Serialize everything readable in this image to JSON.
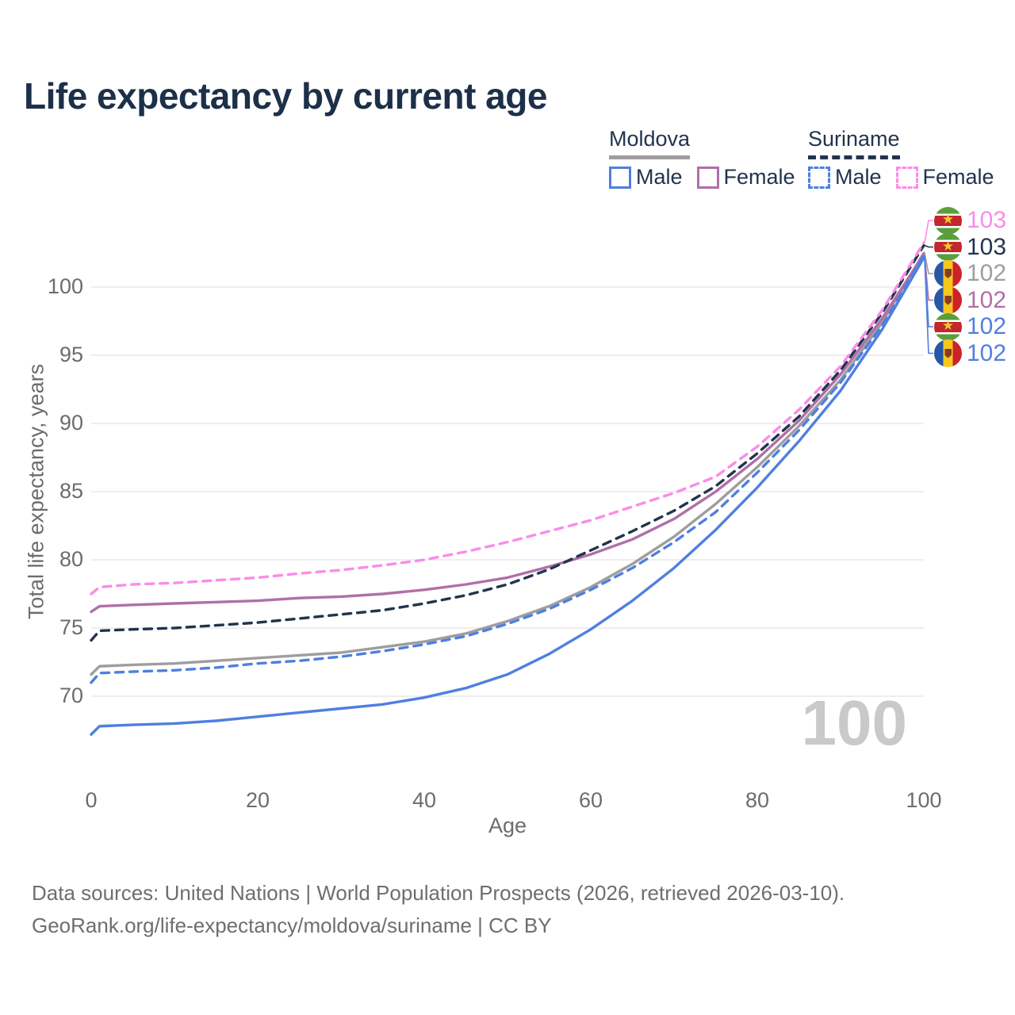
{
  "title": "Life expectancy by current age",
  "legend": {
    "groups": [
      {
        "label": "Moldova",
        "line_style": "solid",
        "line_color": "#9e9e9e",
        "items": [
          {
            "label": "Male",
            "color": "#4f7fe0"
          },
          {
            "label": "Female",
            "color": "#b06fa8"
          }
        ]
      },
      {
        "label": "Suriname",
        "line_style": "dashed",
        "line_color": "#22344d",
        "items": [
          {
            "label": "Male",
            "color": "#4f7fe0"
          },
          {
            "label": "Female",
            "color": "#fa8ce8"
          }
        ]
      }
    ]
  },
  "watermark": "100",
  "right_labels": [
    {
      "flag": "suriname",
      "series": "Suriname Female",
      "value": "103",
      "color": "#fa8ce8"
    },
    {
      "flag": "suriname",
      "series": "Suriname Total",
      "value": "103",
      "color": "#22344d"
    },
    {
      "flag": "moldova",
      "series": "Moldova Total",
      "value": "102",
      "color": "#9e9e9e"
    },
    {
      "flag": "moldova",
      "series": "Moldova Female",
      "value": "102",
      "color": "#b06fa8"
    },
    {
      "flag": "suriname",
      "series": "Suriname Male",
      "value": "102",
      "color": "#4f7fe0"
    },
    {
      "flag": "moldova",
      "series": "Moldova Male",
      "value": "102",
      "color": "#4f7fe0"
    }
  ],
  "chart_data": {
    "type": "line",
    "title": "Life expectancy by current age",
    "xlabel": "Age",
    "ylabel": "Total life expectancy, years",
    "xlim": [
      0,
      100
    ],
    "ylim": [
      66,
      104
    ],
    "x_ticks": [
      0,
      20,
      40,
      60,
      80,
      100
    ],
    "y_ticks": [
      70,
      75,
      80,
      85,
      90,
      95,
      100
    ],
    "grid": true,
    "legend_position": "top-right",
    "x": [
      0,
      1,
      5,
      10,
      15,
      20,
      25,
      30,
      35,
      40,
      45,
      50,
      55,
      60,
      65,
      70,
      75,
      80,
      85,
      90,
      95,
      100
    ],
    "series": [
      {
        "name": "Moldova Total",
        "country": "Moldova",
        "sex": "Both",
        "line_style": "solid",
        "color": "#9e9e9e",
        "values": [
          71.6,
          72.2,
          72.3,
          72.4,
          72.6,
          72.8,
          73.0,
          73.2,
          73.6,
          74.0,
          74.6,
          75.5,
          76.6,
          78.0,
          79.7,
          81.7,
          84.1,
          86.8,
          89.8,
          93.2,
          97.4,
          102.5
        ]
      },
      {
        "name": "Moldova Female",
        "country": "Moldova",
        "sex": "Female",
        "line_style": "solid",
        "color": "#b06fa8",
        "values": [
          76.2,
          76.6,
          76.7,
          76.8,
          76.9,
          77.0,
          77.2,
          77.3,
          77.5,
          77.8,
          78.2,
          78.7,
          79.5,
          80.4,
          81.5,
          83.0,
          85.0,
          87.4,
          90.2,
          93.6,
          97.7,
          102.4
        ]
      },
      {
        "name": "Suriname Male",
        "country": "Suriname",
        "sex": "Male",
        "line_style": "dashed",
        "color": "#4f7fe0",
        "values": [
          71.0,
          71.7,
          71.8,
          71.9,
          72.1,
          72.4,
          72.6,
          72.9,
          73.3,
          73.8,
          74.4,
          75.3,
          76.4,
          77.8,
          79.4,
          81.3,
          83.5,
          86.4,
          89.5,
          93.0,
          97.2,
          102.3
        ]
      },
      {
        "name": "Suriname Total",
        "country": "Suriname",
        "sex": "Both",
        "line_style": "dashed",
        "color": "#22344d",
        "values": [
          74.1,
          74.8,
          74.9,
          75.0,
          75.2,
          75.4,
          75.7,
          76.0,
          76.3,
          76.8,
          77.4,
          78.2,
          79.3,
          80.7,
          82.1,
          83.6,
          85.4,
          87.8,
          90.5,
          93.9,
          98.1,
          103.05
        ]
      },
      {
        "name": "Suriname Female",
        "country": "Suriname",
        "sex": "Female",
        "line_style": "dashed",
        "color": "#fa8ce8",
        "values": [
          77.5,
          78.0,
          78.2,
          78.3,
          78.5,
          78.7,
          79.0,
          79.25,
          79.6,
          80.0,
          80.6,
          81.3,
          82.1,
          82.9,
          83.9,
          84.9,
          86.1,
          88.3,
          91.0,
          94.2,
          98.3,
          103.25
        ]
      },
      {
        "name": "Moldova Male",
        "country": "Moldova",
        "sex": "Male",
        "line_style": "solid",
        "color": "#4f7fe0",
        "values": [
          67.2,
          67.8,
          67.9,
          68.0,
          68.2,
          68.5,
          68.8,
          69.1,
          69.4,
          69.9,
          70.6,
          71.6,
          73.1,
          74.9,
          77.0,
          79.4,
          82.2,
          85.3,
          88.7,
          92.4,
          96.9,
          102.15
        ]
      }
    ]
  },
  "footer": {
    "line1": "Data sources: United Nations | World Population Prospects (2026, retrieved 2026-03-10).",
    "line2": "GeoRank.org/life-expectancy/moldova/suriname | CC BY"
  }
}
